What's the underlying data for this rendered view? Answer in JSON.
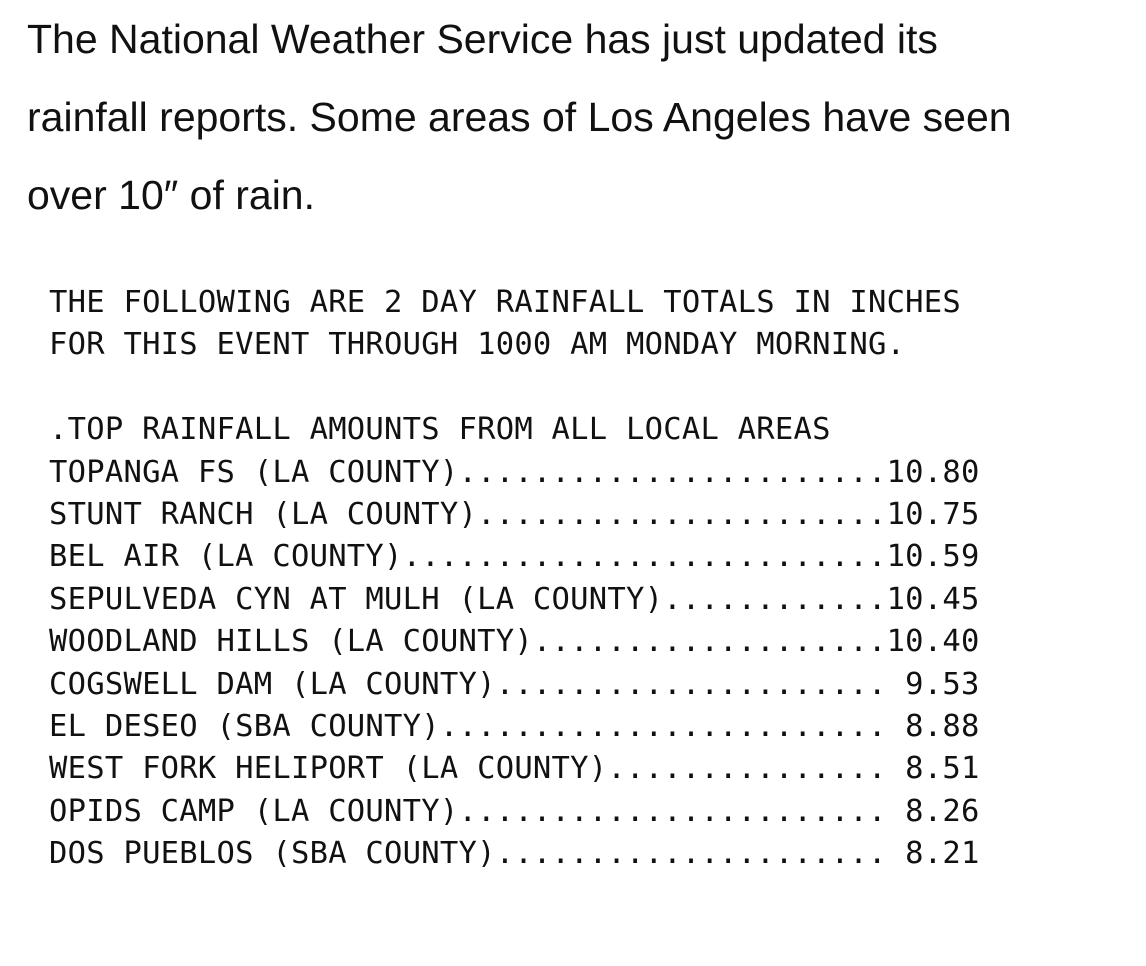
{
  "intro": {
    "lines": [
      "The National Weather Service has just updated its",
      "rainfall reports. Some areas of Los Angeles have seen",
      "over 10″ of rain."
    ]
  },
  "report": {
    "header_lines": [
      "THE FOLLOWING ARE 2 DAY RAINFALL TOTALS IN INCHES",
      "FOR THIS EVENT THROUGH 1000 AM MONDAY MORNING."
    ],
    "section_title": ".TOP RAINFALL AMOUNTS FROM ALL LOCAL AREAS",
    "rows": [
      "TOPANGA FS (LA COUNTY).......................10.80",
      "STUNT RANCH (LA COUNTY)......................10.75",
      "BEL AIR (LA COUNTY)..........................10.59",
      "SEPULVEDA CYN AT MULH (LA COUNTY)............10.45",
      "WOODLAND HILLS (LA COUNTY)...................10.40",
      "COGSWELL DAM (LA COUNTY)..................... 9.53",
      "EL DESEO (SBA COUNTY)........................ 8.88",
      "WEST FORK HELIPORT (LA COUNTY)............... 8.51",
      "OPIDS CAMP (LA COUNTY)....................... 8.26",
      "DOS PUEBLOS (SBA COUNTY)..................... 8.21"
    ]
  }
}
